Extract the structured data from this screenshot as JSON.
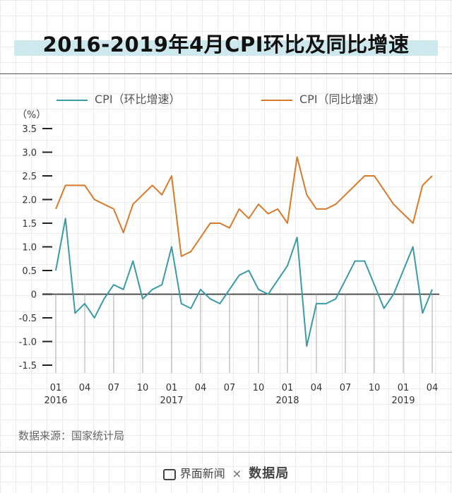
{
  "chart_data": {
    "type": "line",
    "title": "2016-2019年4月CPI环比及同比增速",
    "unit_label": "（%）",
    "ylim": [
      -1.5,
      3.5
    ],
    "y_ticks": [
      "3.5",
      "3.0",
      "2.5",
      "2.0",
      "1.5",
      "1.0",
      "0.5",
      "0",
      "-0.5",
      "-1.0",
      "-1.5"
    ],
    "x": [
      "2016-01",
      "2016-02",
      "2016-03",
      "2016-04",
      "2016-05",
      "2016-06",
      "2016-07",
      "2016-08",
      "2016-09",
      "2016-10",
      "2016-11",
      "2016-12",
      "2017-01",
      "2017-02",
      "2017-03",
      "2017-04",
      "2017-05",
      "2017-06",
      "2017-07",
      "2017-08",
      "2017-09",
      "2017-10",
      "2017-11",
      "2017-12",
      "2018-01",
      "2018-02",
      "2018-03",
      "2018-04",
      "2018-05",
      "2018-06",
      "2018-07",
      "2018-08",
      "2018-09",
      "2018-10",
      "2018-11",
      "2018-12",
      "2019-01",
      "2019-02",
      "2019-03",
      "2019-04"
    ],
    "x_tick_labels": [
      {
        "month": "01",
        "year": "2016"
      },
      {
        "month": "04"
      },
      {
        "month": "07"
      },
      {
        "month": "10"
      },
      {
        "month": "01",
        "year": "2017"
      },
      {
        "month": "04"
      },
      {
        "month": "07"
      },
      {
        "month": "10"
      },
      {
        "month": "01",
        "year": "2018"
      },
      {
        "month": "04"
      },
      {
        "month": "07"
      },
      {
        "month": "10"
      },
      {
        "month": "01",
        "year": "2019"
      },
      {
        "month": "04"
      }
    ],
    "series": [
      {
        "name": "CPI（环比增速）",
        "color": "#3a9ba6",
        "values": [
          0.5,
          1.6,
          -0.4,
          -0.2,
          -0.5,
          -0.1,
          0.2,
          0.1,
          0.7,
          -0.1,
          0.1,
          0.2,
          1.0,
          -0.2,
          -0.3,
          0.1,
          -0.1,
          -0.2,
          0.1,
          0.4,
          0.5,
          0.1,
          0.0,
          0.3,
          0.6,
          1.2,
          -1.1,
          -0.2,
          -0.2,
          -0.1,
          0.3,
          0.7,
          0.7,
          0.2,
          -0.3,
          0.0,
          0.5,
          1.0,
          -0.4,
          0.1
        ]
      },
      {
        "name": "CPI（同比增速）",
        "color": "#d97a2b",
        "values": [
          1.8,
          2.3,
          2.3,
          2.3,
          2.0,
          1.9,
          1.8,
          1.3,
          1.9,
          2.1,
          2.3,
          2.1,
          2.5,
          0.8,
          0.9,
          1.2,
          1.5,
          1.5,
          1.4,
          1.8,
          1.6,
          1.9,
          1.7,
          1.8,
          1.5,
          2.9,
          2.1,
          1.8,
          1.8,
          1.9,
          2.1,
          2.3,
          2.5,
          2.5,
          2.2,
          1.9,
          1.7,
          1.5,
          2.3,
          2.5
        ]
      }
    ]
  },
  "source_text": "数据来源：国家统计局",
  "footer": {
    "brand1": "界面新闻",
    "separator": "×",
    "brand2": "数据局"
  }
}
